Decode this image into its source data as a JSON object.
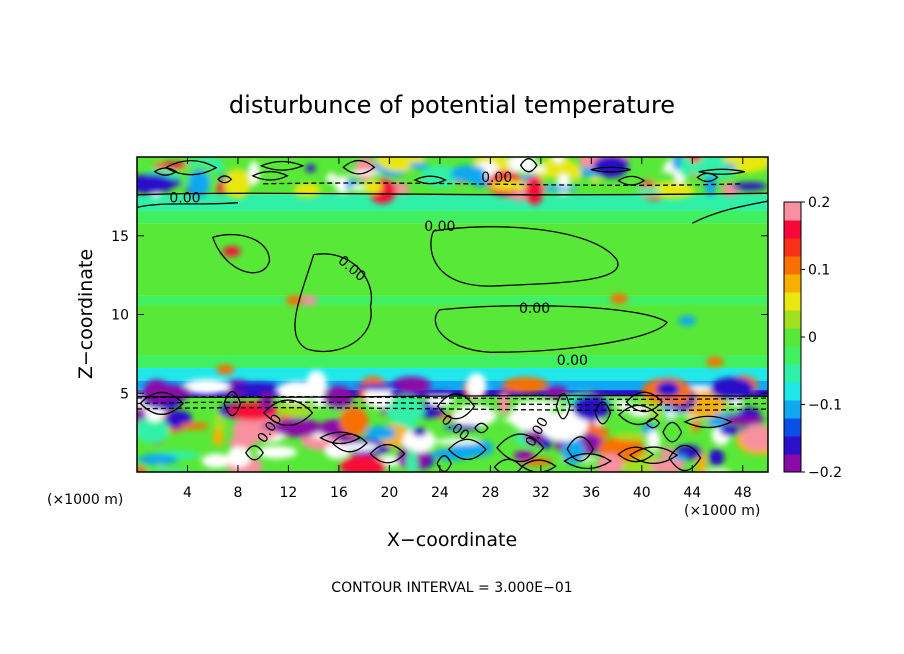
{
  "chart_data": {
    "type": "heatmap",
    "title": "disturbunce of potential temperature",
    "xlabel": "X−coordinate",
    "ylabel": "Z−coordinate",
    "x_unit": "(×1000 m)",
    "x_unit_right": "(×1000 m)",
    "xlim": [
      0,
      50
    ],
    "ylim": [
      0,
      20
    ],
    "x_ticks": [
      4,
      8,
      12,
      16,
      20,
      24,
      28,
      32,
      36,
      40,
      44,
      48
    ],
    "y_ticks": [
      5,
      10,
      15
    ],
    "contour_interval_text": "CONTOUR INTERVAL = 3.000E−01",
    "contour_labels": [
      "0.00",
      "0.00",
      "0.00",
      "0.00",
      "0.00",
      "0.00",
      "0.00",
      "0.00",
      "0.00"
    ],
    "colorbar": {
      "range": [
        -0.2,
        0.2
      ],
      "ticks": [
        {
          "value": 0.2,
          "label": "0.2"
        },
        {
          "value": 0.1,
          "label": "0.1"
        },
        {
          "value": 0.0,
          "label": "0"
        },
        {
          "value": -0.1,
          "label": "−0.1"
        },
        {
          "value": -0.2,
          "label": "−0.2"
        }
      ],
      "colors": [
        "#8a0aa8",
        "#2a10c8",
        "#0a50e8",
        "#10a8f0",
        "#20e8e8",
        "#30f0a8",
        "#40f060",
        "#58e838",
        "#a0e020",
        "#e8e810",
        "#f8b000",
        "#f87000",
        "#f83018",
        "#f80838",
        "#f890a0"
      ]
    },
    "bands": [
      {
        "z_from": 17.6,
        "z_to": 20.0,
        "character": "mixed"
      },
      {
        "z_from": 15.8,
        "z_to": 17.6,
        "character": "slightly negative"
      },
      {
        "z_from": 7.0,
        "z_to": 15.8,
        "character": "near zero"
      },
      {
        "z_from": 4.8,
        "z_to": 7.0,
        "character": "negative"
      },
      {
        "z_from": 0.0,
        "z_to": 4.8,
        "character": "mixed"
      }
    ]
  }
}
